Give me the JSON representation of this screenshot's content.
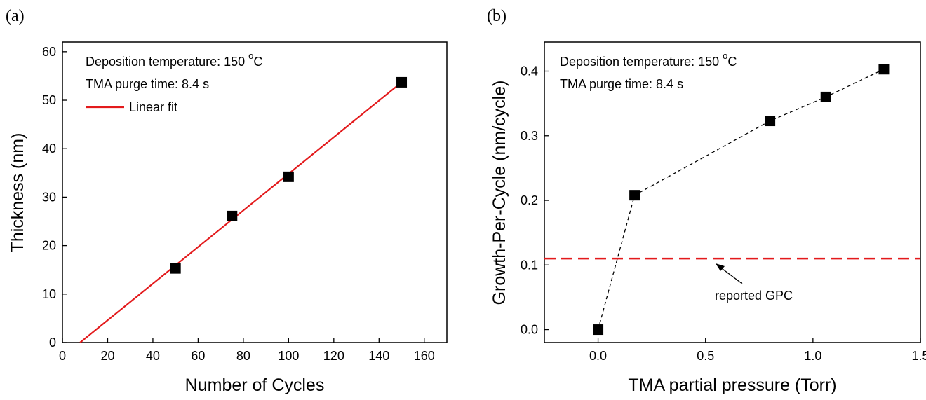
{
  "chart_data": [
    {
      "panel_label": "(a)",
      "type": "scatter",
      "xlabel": "Number of Cycles",
      "ylabel": "Thickness (nm)",
      "xlim": [
        0,
        170
      ],
      "ylim": [
        0,
        62
      ],
      "xticks": [
        0,
        20,
        40,
        60,
        80,
        100,
        120,
        140,
        160
      ],
      "yticks": [
        0,
        10,
        20,
        30,
        40,
        50,
        60
      ],
      "annotations": {
        "line1": "Deposition temperature: 150 ",
        "line1_sup": "o",
        "line1_unit": "C",
        "line2": "TMA purge time: 8.4 s"
      },
      "legend": [
        {
          "name": "Linear fit",
          "color": "#e31a1c"
        }
      ],
      "series": [
        {
          "marker": "square",
          "color": "#000000",
          "x": [
            50,
            75,
            100,
            150
          ],
          "y": [
            15.3,
            26.1,
            34.2,
            53.7
          ]
        }
      ],
      "fit_line": {
        "name": "Linear fit",
        "color": "#e31a1c",
        "x": [
          7.8,
          150
        ],
        "y": [
          0,
          53.7
        ]
      }
    },
    {
      "panel_label": "(b)",
      "type": "line",
      "xlabel": "TMA partial pressure (Torr)",
      "ylabel": "Growth-Per-Cycle (nm/cycle)",
      "xlim": [
        -0.25,
        1.5
      ],
      "ylim": [
        -0.02,
        0.445
      ],
      "xticks": [
        0.0,
        0.5,
        1.0,
        1.5
      ],
      "xtick_labels": [
        "0.0",
        "0.5",
        "1.0",
        "1.5"
      ],
      "yticks": [
        0.0,
        0.1,
        0.2,
        0.3,
        0.4
      ],
      "ytick_labels": [
        "0.0",
        "0.1",
        "0.2",
        "0.3",
        "0.4"
      ],
      "annotations": {
        "line1": "Deposition temperature: 150 ",
        "line1_sup": "o",
        "line1_unit": "C",
        "line2": "TMA purge time: 8.4 s",
        "reference_label": "reported GPC"
      },
      "reference_line": {
        "y": 0.11,
        "color": "#e31a1c",
        "style": "dashed"
      },
      "series": [
        {
          "marker": "square",
          "color": "#000000",
          "line_style": "dashed",
          "x": [
            0.0,
            0.17,
            0.8,
            1.06,
            1.33
          ],
          "y": [
            0.0,
            0.208,
            0.323,
            0.36,
            0.403
          ]
        }
      ]
    }
  ]
}
